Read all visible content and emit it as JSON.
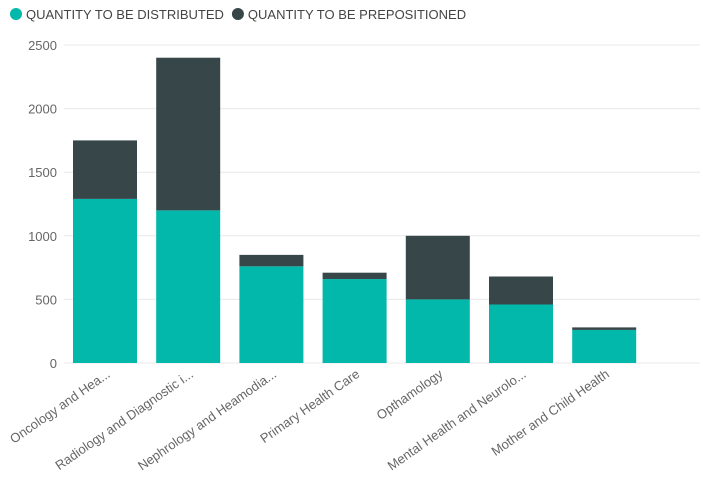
{
  "chart_data": {
    "type": "bar",
    "stacked": true,
    "categories": [
      "Oncology and Hea...",
      "Radiology and Diagnostic i...",
      "Nephrology and Heamodia...",
      "Primary Health Care",
      "Opthamology",
      "Mental Health and Neurolo...",
      "Mother and Child Health"
    ],
    "series": [
      {
        "name": "QUANTITY TO BE DISTRIBUTED",
        "color": "#01B8AA",
        "values": [
          1290,
          1200,
          760,
          660,
          500,
          460,
          260
        ]
      },
      {
        "name": "QUANTITY TO BE PREPOSITIONED",
        "color": "#374649",
        "values": [
          460,
          1200,
          90,
          50,
          500,
          220,
          20
        ]
      }
    ],
    "ylim": [
      0,
      2500
    ],
    "yticks": [
      "0",
      "500",
      "1000",
      "1500",
      "2000",
      "2500"
    ],
    "grid": true,
    "legend_position": "top-left",
    "title": "",
    "xlabel": "",
    "ylabel": ""
  }
}
